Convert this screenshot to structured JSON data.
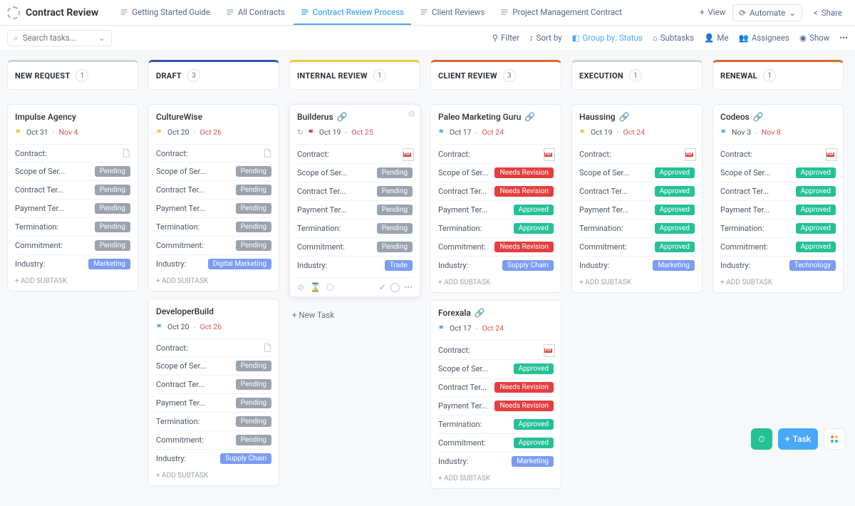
{
  "header": {
    "title": "Contract Review",
    "tabs": [
      {
        "label": "Getting Started Guide",
        "active": false
      },
      {
        "label": "All Contracts",
        "active": false
      },
      {
        "label": "Contract Review Process",
        "active": true
      },
      {
        "label": "Client Reviews",
        "active": false
      },
      {
        "label": "Project Management Contract",
        "active": false
      }
    ],
    "view_label": "View",
    "automate_label": "Automate",
    "share_label": "Share"
  },
  "toolbar": {
    "search_placeholder": "Search tasks...",
    "filter": "Filter",
    "sort": "Sort by",
    "group": "Group by: Status",
    "subtasks": "Subtasks",
    "me": "Me",
    "assignees": "Assignees",
    "show": "Show"
  },
  "pill_colors": {
    "Pending": "#9aa3af",
    "Approved": "#24c196",
    "Needs Revision": "#e53e3e",
    "Marketing": "#7b9cf5",
    "Digital Marketing": "#7b9cf5",
    "Trade": "#7b9cf5",
    "Supply Chain": "#7b9cf5",
    "Technology": "#7b9cf5"
  },
  "flag_colors": {
    "yellow": "#f2c744",
    "red": "#e53e3e",
    "blue": "#5bb0ea"
  },
  "field_labels": {
    "contract": "Contract:",
    "scope": "Scope of Ser...",
    "terms": "Contract Ter...",
    "payment": "Payment Ter...",
    "termination": "Termination:",
    "commitment": "Commitment:",
    "industry": "Industry:"
  },
  "columns": [
    {
      "title": "NEW REQUEST",
      "count": 1,
      "accent": "#d0d4d8",
      "cards": [
        {
          "title": "Impulse Agency",
          "link": false,
          "flag": "yellow",
          "start": "Oct 31",
          "due": "Nov 4",
          "contract_icon": "doc",
          "fields": [
            [
              "scope",
              "Pending"
            ],
            [
              "terms",
              "Pending"
            ],
            [
              "payment",
              "Pending"
            ],
            [
              "termination",
              "Pending"
            ],
            [
              "commitment",
              "Pending"
            ],
            [
              "industry",
              "Marketing"
            ]
          ],
          "add_subtask": true
        }
      ]
    },
    {
      "title": "DRAFT",
      "count": 3,
      "accent": "#3451b2",
      "cards": [
        {
          "title": "CultureWise",
          "link": false,
          "flag": "yellow",
          "start": "Oct 20",
          "due": "Oct 26",
          "contract_icon": "doc",
          "fields": [
            [
              "scope",
              "Pending"
            ],
            [
              "terms",
              "Pending"
            ],
            [
              "payment",
              "Pending"
            ],
            [
              "termination",
              "Pending"
            ],
            [
              "commitment",
              "Pending"
            ],
            [
              "industry",
              "Digital Marketing"
            ]
          ],
          "add_subtask": true
        },
        {
          "title": "DeveloperBuild",
          "link": false,
          "flag": "blue",
          "start": "Oct 20",
          "due": "Oct 26",
          "contract_icon": "doc",
          "fields": [
            [
              "scope",
              "Pending"
            ],
            [
              "terms",
              "Pending"
            ],
            [
              "payment",
              "Pending"
            ],
            [
              "termination",
              "Pending"
            ],
            [
              "commitment",
              "Pending"
            ],
            [
              "industry",
              "Supply Chain"
            ]
          ],
          "add_subtask": true
        }
      ]
    },
    {
      "title": "INTERNAL REVIEW",
      "count": 1,
      "accent": "#f2c744",
      "cards": [
        {
          "title": "Builderus",
          "link": true,
          "flag": "red",
          "hovered": true,
          "prefix_icon": true,
          "start": "Oct 19",
          "due": "Oct 25",
          "contract_icon": "pdf",
          "fields": [
            [
              "scope",
              "Pending"
            ],
            [
              "terms",
              "Pending"
            ],
            [
              "payment",
              "Pending"
            ],
            [
              "termination",
              "Pending"
            ],
            [
              "commitment",
              "Pending"
            ],
            [
              "industry",
              "Trade"
            ]
          ],
          "footer": true
        }
      ],
      "new_task": "+ New Task"
    },
    {
      "title": "CLIENT REVIEW",
      "count": 3,
      "accent": "#d96a2b",
      "cards": [
        {
          "title": "Paleo Marketing Guru",
          "link": true,
          "flag": "blue",
          "start": "Oct 17",
          "due": "Oct 24",
          "contract_icon": "pdf",
          "fields": [
            [
              "scope",
              "Needs Revision"
            ],
            [
              "terms",
              "Needs Revision"
            ],
            [
              "payment",
              "Approved"
            ],
            [
              "termination",
              "Approved"
            ],
            [
              "commitment",
              "Needs Revision"
            ],
            [
              "industry",
              "Supply Chain"
            ]
          ],
          "add_subtask": true
        },
        {
          "title": "Forexala",
          "link": true,
          "flag": "blue",
          "start": "Oct 17",
          "due": "Oct 24",
          "contract_icon": "pdf",
          "fields": [
            [
              "scope",
              "Approved"
            ],
            [
              "terms",
              "Needs Revision"
            ],
            [
              "payment",
              "Needs Revision"
            ],
            [
              "termination",
              "Approved"
            ],
            [
              "commitment",
              "Approved"
            ],
            [
              "industry",
              "Marketing"
            ]
          ],
          "add_subtask": true
        }
      ]
    },
    {
      "title": "EXECUTION",
      "count": 1,
      "accent": "#d0d4d8",
      "cards": [
        {
          "title": "Haussing",
          "link": true,
          "flag": "yellow",
          "start": "Oct 19",
          "due": "Oct 24",
          "contract_icon": "pdf",
          "fields": [
            [
              "scope",
              "Approved"
            ],
            [
              "terms",
              "Approved"
            ],
            [
              "payment",
              "Approved"
            ],
            [
              "termination",
              "Approved"
            ],
            [
              "commitment",
              "Approved"
            ],
            [
              "industry",
              "Marketing"
            ]
          ],
          "add_subtask": true
        }
      ]
    },
    {
      "title": "RENEWAL",
      "count": 1,
      "accent": "#d96a2b",
      "cards": [
        {
          "title": "Codeos",
          "link": true,
          "flag": "blue",
          "start": "Nov 3",
          "due": "Nov 8",
          "contract_icon": "pdf",
          "fields": [
            [
              "scope",
              "Approved"
            ],
            [
              "terms",
              "Approved"
            ],
            [
              "payment",
              "Approved"
            ],
            [
              "termination",
              "Approved"
            ],
            [
              "commitment",
              "Approved"
            ],
            [
              "industry",
              "Technology"
            ]
          ],
          "add_subtask": true
        }
      ]
    }
  ],
  "add_subtask_label": "+ ADD SUBTASK",
  "fab": {
    "task_label": "Task"
  }
}
